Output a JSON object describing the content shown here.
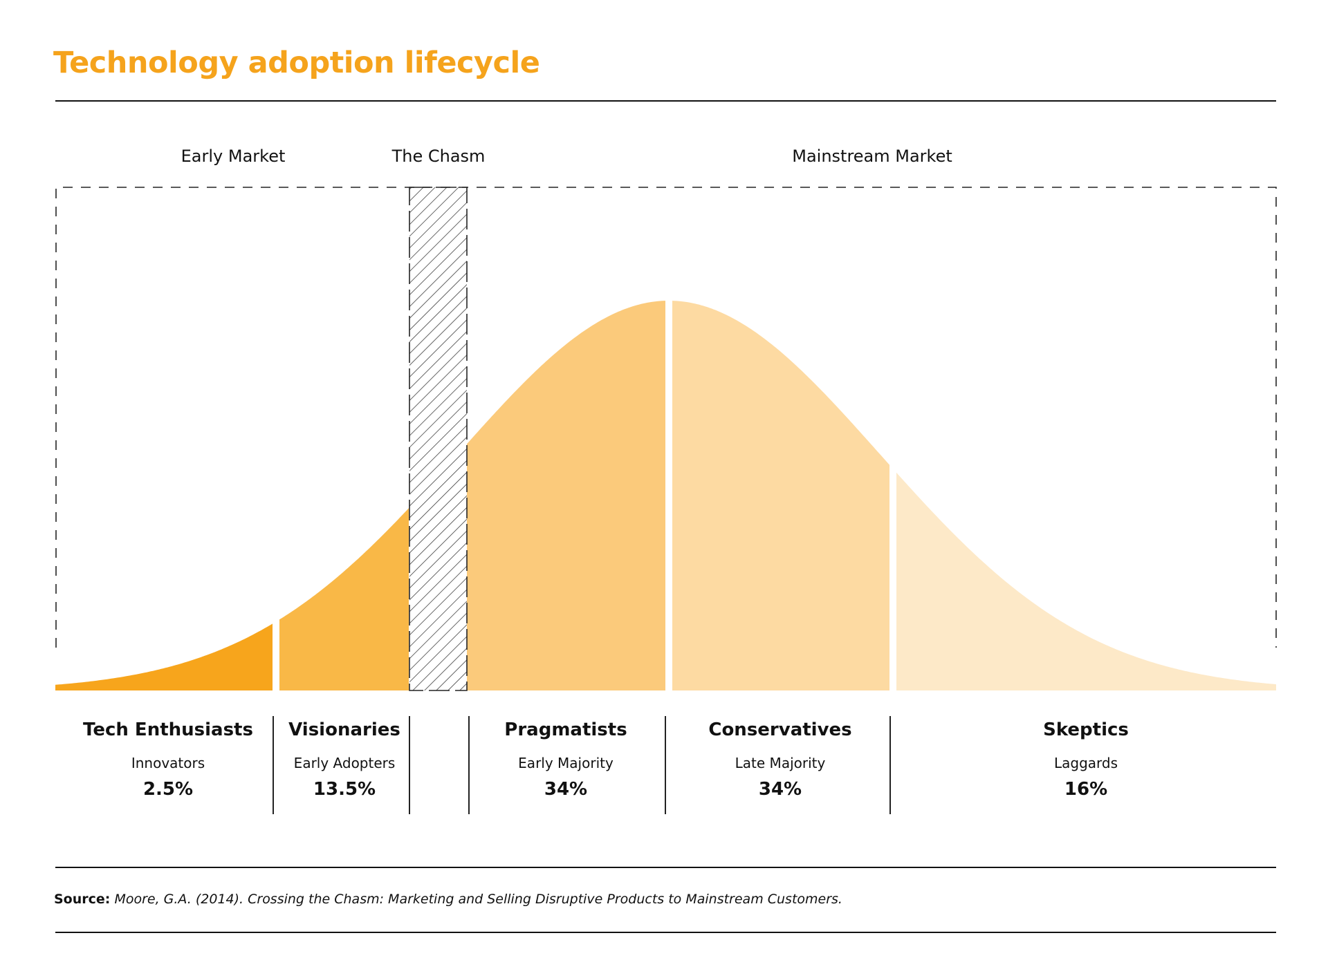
{
  "title": "Technology adoption lifecycle",
  "markets": [
    {
      "label": "Early Market"
    },
    {
      "label": "The Chasm"
    },
    {
      "label": "Mainstream Market"
    }
  ],
  "segments": [
    {
      "name": "Tech Enthusiasts",
      "group": "Innovators",
      "share": "2.5%",
      "color": "#F7A51C"
    },
    {
      "name": "Visionaries",
      "group": "Early Adopters",
      "share": "13.5%",
      "color": "#F9B847"
    },
    {
      "name": "Pragmatists",
      "group": "Early Majority",
      "share": "34%",
      "color": "#FBCA7B"
    },
    {
      "name": "Conservatives",
      "group": "Late Majority",
      "share": "34%",
      "color": "#FDDAA2"
    },
    {
      "name": "Skeptics",
      "group": "Laggards",
      "share": "16%",
      "color": "#FDE9C8"
    }
  ],
  "source": {
    "label": "Source:",
    "text": "Moore, G.A. (2014). Crossing the Chasm: Marketing and Selling Disruptive Products to Mainstream Customers."
  },
  "colors": {
    "accent": "#F5A31C",
    "hatch": "#333333"
  }
}
